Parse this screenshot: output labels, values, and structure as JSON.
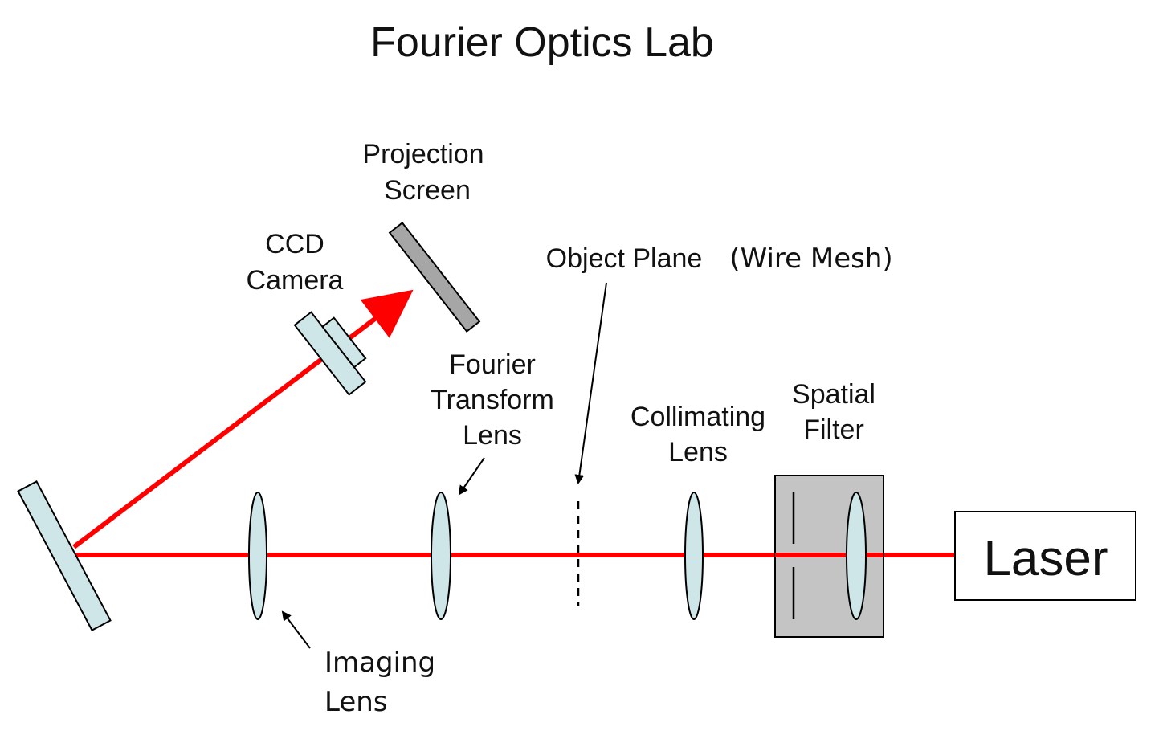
{
  "title": "Fourier Optics Lab",
  "labels": {
    "projection_screen": [
      "Projection",
      "Screen"
    ],
    "ccd_camera": [
      "CCD",
      "Camera"
    ],
    "object_plane": "Object Plane",
    "wire_mesh": "(Wire Mesh)",
    "fourier_transform_lens": [
      "Fourier",
      "Transform",
      "Lens"
    ],
    "collimating_lens": [
      "Collimating",
      "Lens"
    ],
    "spatial_filter": [
      "Spatial",
      "Filter"
    ],
    "imaging_lens": [
      "Imaging",
      "Lens"
    ],
    "laser": "Laser"
  },
  "colors": {
    "beam": "#ff0000",
    "lens_fill": "#cfe6e8",
    "screen_fill": "#a6a6a6",
    "filter_fill": "#c4c4c4"
  }
}
